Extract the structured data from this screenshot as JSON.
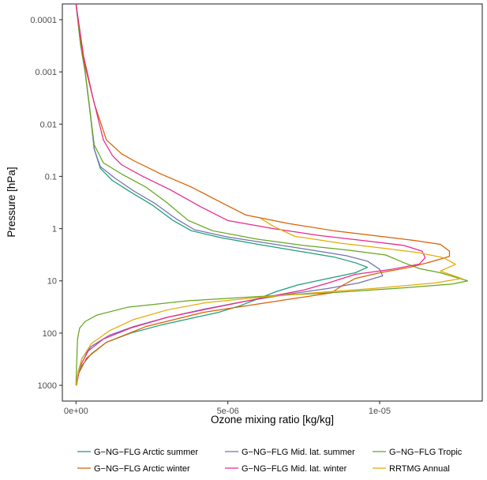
{
  "chart_data": {
    "type": "line",
    "xlabel": "Ozone mixing ratio [kg/kg]",
    "ylabel": "Pressure [hPa]",
    "x_scale": "linear",
    "y_scale": "log10-reversed",
    "xlim": [
      -4.5e-07,
      1.338e-05
    ],
    "ylim": [
      5e-05,
      2000
    ],
    "x_ticks": [
      {
        "value": 0,
        "label": "0e+00"
      },
      {
        "value": 5e-06,
        "label": "5e-06"
      },
      {
        "value": 1e-05,
        "label": "1e-05"
      }
    ],
    "y_ticks": [
      {
        "value": 0.0001,
        "label": "0.0001"
      },
      {
        "value": 0.001,
        "label": "0.001"
      },
      {
        "value": 0.01,
        "label": "0.01"
      },
      {
        "value": 0.1,
        "label": "0.1"
      },
      {
        "value": 1,
        "label": "1"
      },
      {
        "value": 10,
        "label": "10"
      },
      {
        "value": 100,
        "label": "100"
      },
      {
        "value": 1000,
        "label": "1000"
      }
    ],
    "grid": false,
    "legend_position": "bottom",
    "series": [
      {
        "name": "G−NG−FLG Arctic summer",
        "color": "#1b9e77",
        "points": [
          [
            0.0,
            5e-05
          ],
          [
            1.5e-07,
            0.0003
          ],
          [
            3e-07,
            0.001
          ],
          [
            4.5e-07,
            0.005
          ],
          [
            6e-07,
            0.03
          ],
          [
            8e-07,
            0.07
          ],
          [
            1.2e-06,
            0.12
          ],
          [
            1.8e-06,
            0.2
          ],
          [
            2.5e-06,
            0.35
          ],
          [
            3.2e-06,
            0.7
          ],
          [
            3.8e-06,
            1.1
          ],
          [
            4.8e-06,
            1.5
          ],
          [
            6e-06,
            2.0
          ],
          [
            7.5e-06,
            2.8
          ],
          [
            8.5e-06,
            3.5
          ],
          [
            9.2e-06,
            4.5
          ],
          [
            9.6e-06,
            5.5
          ],
          [
            9.2e-06,
            7.0
          ],
          [
            8.3e-06,
            9.0
          ],
          [
            7.3e-06,
            12.0
          ],
          [
            6.6e-06,
            16.0
          ],
          [
            6e-06,
            22.0
          ],
          [
            5.4e-06,
            30.0
          ],
          [
            4.7e-06,
            40.0
          ],
          [
            3.8e-06,
            52.0
          ],
          [
            2.8e-06,
            70.0
          ],
          [
            1.8e-06,
            100.0
          ],
          [
            1e-06,
            150.0
          ],
          [
            5e-07,
            250.0
          ],
          [
            1.5e-07,
            450.0
          ],
          [
            5e-08,
            700.0
          ],
          [
            2e-08,
            1000.0
          ]
        ]
      },
      {
        "name": "G−NG−FLG Mid. lat. summer",
        "color": "#7570b3",
        "points": [
          [
            0.0,
            5e-05
          ],
          [
            1.5e-07,
            0.0003
          ],
          [
            3e-07,
            0.001
          ],
          [
            4.5e-07,
            0.005
          ],
          [
            6e-07,
            0.03
          ],
          [
            8e-07,
            0.065
          ],
          [
            1.3e-06,
            0.11
          ],
          [
            1.9e-06,
            0.19
          ],
          [
            2.6e-06,
            0.33
          ],
          [
            3.3e-06,
            0.65
          ],
          [
            3.9e-06,
            1.05
          ],
          [
            5e-06,
            1.45
          ],
          [
            6.3e-06,
            1.9
          ],
          [
            7.8e-06,
            2.6
          ],
          [
            8.9e-06,
            3.3
          ],
          [
            9.6e-06,
            4.2
          ],
          [
            1e-05,
            6.0
          ],
          [
            1.01e-05,
            8.0
          ],
          [
            9.3e-06,
            11.0
          ],
          [
            8.3e-06,
            14.0
          ],
          [
            7e-06,
            18.0
          ],
          [
            5.5e-06,
            25.0
          ],
          [
            4.2e-06,
            35.0
          ],
          [
            3e-06,
            50.0
          ],
          [
            1.9e-06,
            75.0
          ],
          [
            1.1e-06,
            110.0
          ],
          [
            5e-07,
            180.0
          ],
          [
            2e-07,
            300.0
          ],
          [
            7e-08,
            550.0
          ],
          [
            2e-08,
            1000.0
          ]
        ]
      },
      {
        "name": "G−NG−FLG Tropic",
        "color": "#66a61e",
        "points": [
          [
            0.0,
            5e-05
          ],
          [
            1.5e-07,
            0.0003
          ],
          [
            3e-07,
            0.001
          ],
          [
            4.5e-07,
            0.005
          ],
          [
            6e-07,
            0.025
          ],
          [
            9e-07,
            0.055
          ],
          [
            1.5e-06,
            0.09
          ],
          [
            2.3e-06,
            0.16
          ],
          [
            3e-06,
            0.32
          ],
          [
            3.7e-06,
            0.7
          ],
          [
            4.5e-06,
            1.1
          ],
          [
            6e-06,
            1.6
          ],
          [
            7.5e-06,
            2.1
          ],
          [
            9e-06,
            2.6
          ],
          [
            1.02e-05,
            3.2
          ],
          [
            1.08e-05,
            4.5
          ],
          [
            1.13e-05,
            5.8
          ],
          [
            1.2e-05,
            7.0
          ],
          [
            1.29e-05,
            10.0
          ],
          [
            1.24e-05,
            11.5
          ],
          [
            1.05e-05,
            14.0
          ],
          [
            8.3e-06,
            17.0
          ],
          [
            6e-06,
            20.0
          ],
          [
            3.7e-06,
            24.0
          ],
          [
            1.7e-06,
            32.0
          ],
          [
            7e-07,
            45.0
          ],
          [
            3e-07,
            60.0
          ],
          [
            1.2e-07,
            80.0
          ],
          [
            5e-08,
            130.0
          ],
          [
            1e-08,
            600.0
          ],
          [
            0.0,
            1000.0
          ]
        ]
      },
      {
        "name": "G−NG−FLG Arctic winter",
        "color": "#d95f02",
        "points": [
          [
            0.0,
            5e-05
          ],
          [
            2.5e-07,
            0.0006
          ],
          [
            6e-07,
            0.004
          ],
          [
            1e-06,
            0.02
          ],
          [
            1.5e-06,
            0.037
          ],
          [
            1.9e-06,
            0.05
          ],
          [
            2.8e-06,
            0.09
          ],
          [
            3.8e-06,
            0.16
          ],
          [
            4.8e-06,
            0.32
          ],
          [
            5.6e-06,
            0.55
          ],
          [
            7e-06,
            0.8
          ],
          [
            8.5e-06,
            1.1
          ],
          [
            1e-05,
            1.4
          ],
          [
            1.12e-05,
            1.7
          ],
          [
            1.2e-05,
            2.0
          ],
          [
            1.23e-05,
            2.7
          ],
          [
            1.23e-05,
            3.4
          ],
          [
            1.17e-05,
            4.3
          ],
          [
            1.1e-05,
            5.5
          ],
          [
            1e-05,
            7.0
          ],
          [
            9.2e-06,
            9.0
          ],
          [
            8.8e-06,
            12.0
          ],
          [
            8.4e-06,
            17.0
          ],
          [
            6.5e-06,
            25.0
          ],
          [
            4.2e-06,
            40.0
          ],
          [
            2.3e-06,
            75.0
          ],
          [
            1e-06,
            150.0
          ],
          [
            3.5e-07,
            300.0
          ],
          [
            8e-08,
            600.0
          ],
          [
            2e-08,
            1000.0
          ]
        ]
      },
      {
        "name": "G−NG−FLG Mid. lat. winter",
        "color": "#e7298a",
        "points": [
          [
            0.0,
            5e-05
          ],
          [
            2.5e-07,
            0.0005
          ],
          [
            5.5e-07,
            0.003
          ],
          [
            9e-07,
            0.02
          ],
          [
            1.2e-06,
            0.04
          ],
          [
            1.5e-06,
            0.06
          ],
          [
            2.2e-06,
            0.1
          ],
          [
            3.1e-06,
            0.18
          ],
          [
            4.1e-06,
            0.38
          ],
          [
            5e-06,
            0.7
          ],
          [
            6.5e-06,
            1.0
          ],
          [
            8e-06,
            1.35
          ],
          [
            9.5e-06,
            1.7
          ],
          [
            1.08e-05,
            2.1
          ],
          [
            1.14e-05,
            2.7
          ],
          [
            1.15e-05,
            3.6
          ],
          [
            1.13e-05,
            4.8
          ],
          [
            1.04e-05,
            6.0
          ],
          [
            9.2e-06,
            7.5
          ],
          [
            8.3e-06,
            11.0
          ],
          [
            7.5e-06,
            15.0
          ],
          [
            6e-06,
            22.0
          ],
          [
            4.5e-06,
            33.0
          ],
          [
            3e-06,
            50.0
          ],
          [
            1.8e-06,
            80.0
          ],
          [
            9e-07,
            130.0
          ],
          [
            4e-07,
            220.0
          ],
          [
            1.2e-07,
            450.0
          ],
          [
            2e-08,
            1000.0
          ]
        ]
      },
      {
        "name": "RRTMG Annual",
        "color": "#e6ab02",
        "points": [
          [
            6.1e-06,
            0.65
          ],
          [
            6.5e-06,
            0.9
          ],
          [
            7.2e-06,
            1.4
          ],
          [
            8.7e-06,
            1.9
          ],
          [
            1.02e-05,
            2.4
          ],
          [
            1.13e-05,
            2.9
          ],
          [
            1.21e-05,
            3.6
          ],
          [
            1.25e-05,
            4.8
          ],
          [
            1.2e-05,
            6.5
          ],
          [
            1.27e-05,
            9.0
          ],
          [
            1.18e-05,
            11.0
          ],
          [
            9.8e-06,
            14.0
          ],
          [
            7.8e-06,
            17.0
          ],
          [
            5.9e-06,
            21.0
          ],
          [
            4.3e-06,
            26.0
          ],
          [
            3e-06,
            36.0
          ],
          [
            1.9e-06,
            55.0
          ],
          [
            1.1e-06,
            90.0
          ],
          [
            5e-07,
            160.0
          ],
          [
            1.8e-07,
            320.0
          ],
          [
            5e-08,
            650.0
          ],
          [
            2e-08,
            1000.0
          ]
        ]
      }
    ]
  }
}
